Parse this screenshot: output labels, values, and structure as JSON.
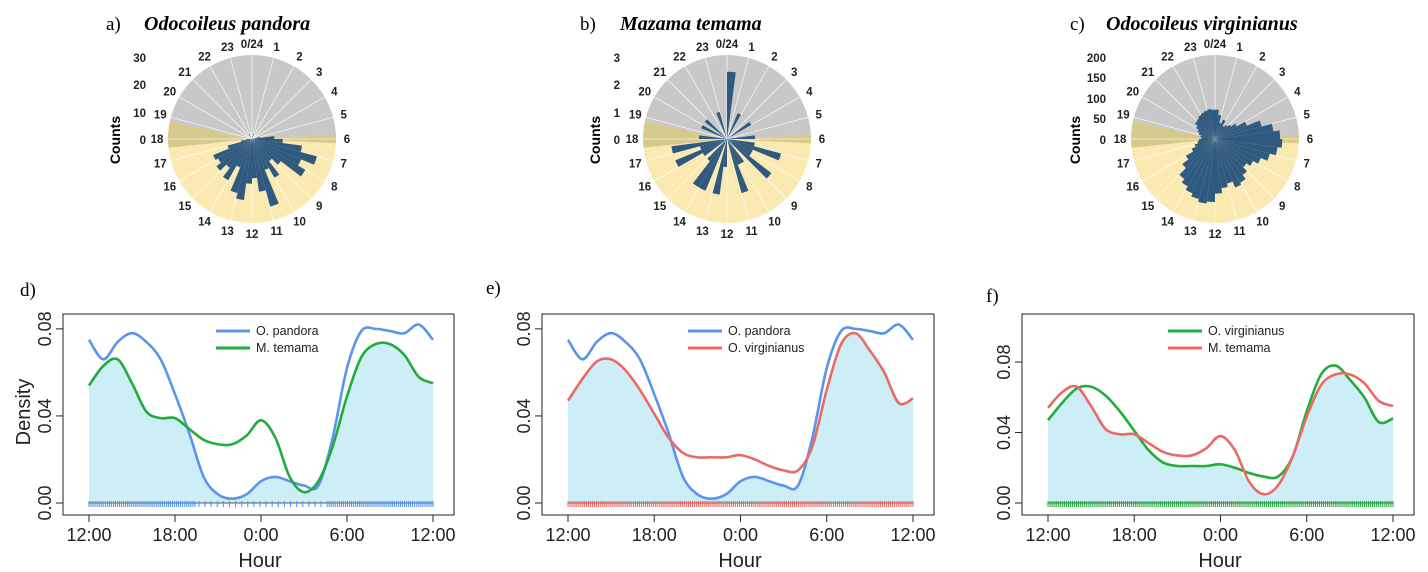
{
  "colors": {
    "night_sector": "#c8c8c8",
    "day_sector": "#fbe9b2",
    "twilight_sector": "#d6c98a",
    "bars": "#30597f",
    "density_fill": "#cdeef6",
    "o_pandora": "#5b94ec",
    "m_temama": "#22ad3a",
    "o_virginianus_red": "#ea6a66",
    "o_virginianus_green": "#22ad3a",
    "m_temama_red": "#ea6a66"
  },
  "chart_data": [
    {
      "type": "rose",
      "panel_label": "a)",
      "title": "Odocoileus pandora",
      "ylabel": "Counts",
      "count_ticks": [
        "30",
        "20",
        "10",
        "0"
      ],
      "hour_labels": [
        "0/24",
        "1",
        "2",
        "3",
        "4",
        "5",
        "6",
        "7",
        "8",
        "9",
        "10",
        "11",
        "12",
        "13",
        "14",
        "15",
        "16",
        "17",
        "18",
        "19",
        "20",
        "21",
        "22",
        "23"
      ],
      "rmax": 30,
      "bins_per_hour": 2,
      "counts": [
        1,
        0,
        2,
        0,
        0,
        0,
        0,
        0,
        0,
        0,
        3,
        8,
        11,
        18,
        24,
        19,
        22,
        13,
        10,
        16,
        12,
        25,
        19,
        14,
        16,
        22,
        20,
        11,
        17,
        13,
        16,
        14,
        15,
        9,
        4,
        2,
        1,
        0,
        0,
        0,
        0,
        0,
        0,
        2,
        0,
        0,
        0,
        0
      ]
    },
    {
      "type": "rose",
      "panel_label": "b)",
      "title": "Mazama temama",
      "ylabel": "Counts",
      "count_ticks": [
        "3",
        "2",
        "1",
        "0"
      ],
      "hour_labels": [
        "0/24",
        "1",
        "2",
        "3",
        "4",
        "5",
        "6",
        "7",
        "8",
        "9",
        "10",
        "11",
        "12",
        "13",
        "14",
        "15",
        "16",
        "17",
        "18",
        "19",
        "20",
        "21",
        "22",
        "23"
      ],
      "rmax": 3,
      "bins_per_hour": 2,
      "counts": [
        2.4,
        0,
        0,
        1,
        0,
        0,
        0,
        1,
        0,
        0,
        0,
        1,
        0,
        1,
        2,
        1,
        1,
        2,
        0,
        1,
        1,
        2,
        0,
        0,
        1,
        2,
        0,
        2,
        2,
        1,
        0,
        1,
        2,
        1,
        2,
        0,
        1,
        0,
        0,
        1,
        0,
        1,
        0,
        0,
        0,
        1,
        0,
        0
      ]
    },
    {
      "type": "rose",
      "panel_label": "c)",
      "title": "Odocoileus virginianus",
      "ylabel": "Counts",
      "count_ticks": [
        "200",
        "150",
        "100",
        "50",
        "0"
      ],
      "hour_labels": [
        "0/24",
        "1",
        "2",
        "3",
        "4",
        "5",
        "6",
        "7",
        "8",
        "9",
        "10",
        "11",
        "12",
        "13",
        "14",
        "15",
        "16",
        "17",
        "18",
        "19",
        "20",
        "21",
        "22",
        "23"
      ],
      "rmax": 200,
      "bins_per_hour": 2,
      "counts": [
        70,
        58,
        40,
        50,
        36,
        42,
        48,
        60,
        82,
        115,
        140,
        155,
        160,
        150,
        135,
        118,
        105,
        95,
        108,
        120,
        125,
        110,
        118,
        130,
        150,
        155,
        148,
        140,
        130,
        120,
        98,
        80,
        60,
        50,
        42,
        38,
        32,
        35,
        40,
        45,
        52,
        60,
        62,
        66,
        68,
        70,
        72,
        70
      ]
    },
    {
      "type": "line",
      "panel_label": "d)",
      "xlabel": "Hour",
      "ylabel": "Density",
      "x_ticks": [
        "12:00",
        "18:00",
        "0:00",
        "6:00",
        "12:00"
      ],
      "y_ticks": [
        "0.00",
        "0.04",
        "0.08"
      ],
      "xlim": [
        12,
        36
      ],
      "ylim": [
        0,
        0.085
      ],
      "fill_series": "min",
      "rug_color": "#5b94ec",
      "series": [
        {
          "name": "O. pandora",
          "color": "#5b94ec",
          "x": [
            12,
            13,
            14,
            15,
            16,
            17,
            18,
            19,
            20,
            21,
            22,
            23,
            24,
            25,
            26,
            27,
            28,
            29,
            30,
            31,
            32,
            33,
            34,
            35,
            36
          ],
          "y": [
            0.075,
            0.066,
            0.074,
            0.078,
            0.074,
            0.066,
            0.05,
            0.032,
            0.012,
            0.004,
            0.002,
            0.004,
            0.01,
            0.012,
            0.01,
            0.008,
            0.008,
            0.03,
            0.062,
            0.079,
            0.08,
            0.079,
            0.078,
            0.082,
            0.075
          ]
        },
        {
          "name": "M. temama",
          "color": "#22ad3a",
          "x": [
            12,
            13,
            14,
            15,
            16,
            17,
            18,
            19,
            20,
            21,
            22,
            23,
            24,
            25,
            26,
            27,
            28,
            29,
            30,
            31,
            32,
            33,
            34,
            35,
            36
          ],
          "y": [
            0.054,
            0.063,
            0.066,
            0.055,
            0.042,
            0.039,
            0.039,
            0.034,
            0.029,
            0.027,
            0.027,
            0.031,
            0.038,
            0.03,
            0.012,
            0.005,
            0.01,
            0.026,
            0.049,
            0.067,
            0.073,
            0.073,
            0.068,
            0.058,
            0.055
          ]
        }
      ]
    },
    {
      "type": "line",
      "panel_label": "e)",
      "xlabel": "Hour",
      "ylabel": "",
      "x_ticks": [
        "12:00",
        "18:00",
        "0:00",
        "6:00",
        "12:00"
      ],
      "y_ticks": [
        "0.00",
        "0.04",
        "0.08"
      ],
      "xlim": [
        12,
        36
      ],
      "ylim": [
        0,
        0.085
      ],
      "fill_series": "min",
      "rug_color": "#ea6a66",
      "series": [
        {
          "name": "O. pandora",
          "color": "#5b94ec",
          "x": [
            12,
            13,
            14,
            15,
            16,
            17,
            18,
            19,
            20,
            21,
            22,
            23,
            24,
            25,
            26,
            27,
            28,
            29,
            30,
            31,
            32,
            33,
            34,
            35,
            36
          ],
          "y": [
            0.075,
            0.066,
            0.074,
            0.078,
            0.074,
            0.066,
            0.05,
            0.032,
            0.012,
            0.004,
            0.002,
            0.004,
            0.01,
            0.012,
            0.01,
            0.008,
            0.008,
            0.03,
            0.062,
            0.079,
            0.08,
            0.079,
            0.078,
            0.082,
            0.075
          ]
        },
        {
          "name": "O. virginianus",
          "color": "#ea6a66",
          "x": [
            12,
            13,
            14,
            15,
            16,
            17,
            18,
            19,
            20,
            21,
            22,
            23,
            24,
            25,
            26,
            27,
            28,
            29,
            30,
            31,
            32,
            33,
            34,
            35,
            36
          ],
          "y": [
            0.047,
            0.057,
            0.065,
            0.066,
            0.061,
            0.052,
            0.041,
            0.03,
            0.023,
            0.021,
            0.021,
            0.021,
            0.022,
            0.02,
            0.017,
            0.015,
            0.015,
            0.026,
            0.052,
            0.073,
            0.078,
            0.07,
            0.06,
            0.046,
            0.048
          ]
        }
      ]
    },
    {
      "type": "line",
      "panel_label": "f)",
      "xlabel": "Hour",
      "ylabel": "",
      "x_ticks": [
        "12:00",
        "18:00",
        "0:00",
        "6:00",
        "12:00"
      ],
      "y_ticks": [
        "0.00",
        "0.04",
        "0.08"
      ],
      "xlim": [
        12,
        36
      ],
      "ylim": [
        0,
        0.105
      ],
      "fill_series": "min",
      "rug_color": "#22ad3a",
      "series": [
        {
          "name": "O. virginianus",
          "color": "#22ad3a",
          "x": [
            12,
            13,
            14,
            15,
            16,
            17,
            18,
            19,
            20,
            21,
            22,
            23,
            24,
            25,
            26,
            27,
            28,
            29,
            30,
            31,
            32,
            33,
            34,
            35,
            36
          ],
          "y": [
            0.047,
            0.057,
            0.065,
            0.066,
            0.061,
            0.052,
            0.041,
            0.03,
            0.023,
            0.021,
            0.021,
            0.021,
            0.022,
            0.02,
            0.017,
            0.015,
            0.015,
            0.026,
            0.052,
            0.073,
            0.078,
            0.07,
            0.06,
            0.046,
            0.048
          ]
        },
        {
          "name": "M. temama",
          "color": "#ea6a66",
          "x": [
            12,
            13,
            14,
            15,
            16,
            17,
            18,
            19,
            20,
            21,
            22,
            23,
            24,
            25,
            26,
            27,
            28,
            29,
            30,
            31,
            32,
            33,
            34,
            35,
            36
          ],
          "y": [
            0.054,
            0.063,
            0.066,
            0.055,
            0.042,
            0.039,
            0.039,
            0.034,
            0.029,
            0.027,
            0.027,
            0.031,
            0.038,
            0.03,
            0.012,
            0.005,
            0.01,
            0.026,
            0.049,
            0.067,
            0.073,
            0.073,
            0.068,
            0.058,
            0.055
          ]
        }
      ]
    }
  ]
}
